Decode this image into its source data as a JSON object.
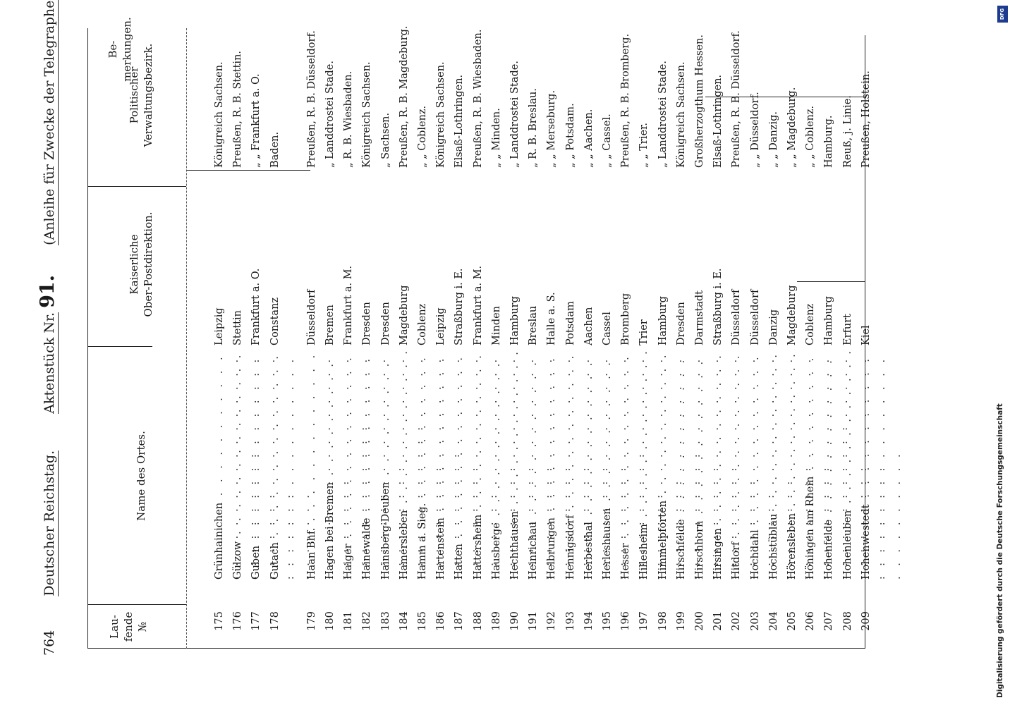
{
  "header": {
    "page_number": "764",
    "publication": "Deutscher Reichstag.",
    "document_label": "Aktenstück Nr.",
    "document_number": "91.",
    "subject": "(Anleihe für Zwecke der Telegraphen-Verwaltung.)"
  },
  "columns": {
    "number": [
      "Lau-",
      "fende",
      "№"
    ],
    "place": [
      "Name des Ortes."
    ],
    "opd": [
      "Kaiserliche",
      "Ober-Postdirektion."
    ],
    "district": [
      "Politischer",
      "Verwaltungsbezirk."
    ],
    "remarks": [
      "Be-",
      "merkungen."
    ]
  },
  "rows": [
    {
      "no": "175",
      "place": "Grünhainichen",
      "opd": "Leipzig",
      "district": "Königreich Sachsen."
    },
    {
      "no": "176",
      "place": "Gülzow",
      "opd": "Stettin",
      "district": "Preußen, R. B. Stettin."
    },
    {
      "no": "177",
      "place": "Guben",
      "opd": "Frankfurt a. O.",
      "district": "„  „  Frankfurt a. O."
    },
    {
      "no": "178",
      "place": "Gutach",
      "opd": "Constanz",
      "district": "Baden."
    },
    {
      "no": "179",
      "place": "Haan Bhf.",
      "opd": "Düsseldorf",
      "district": "Preußen, R. B. Düsseldorf."
    },
    {
      "no": "180",
      "place": "Hagen bei Bremen",
      "opd": "Bremen",
      "district": "„  Landdrostei Stade."
    },
    {
      "no": "181",
      "place": "Haiger",
      "opd": "Frankfurt a. M.",
      "district": "„  R. B. Wiesbaden."
    },
    {
      "no": "182",
      "place": "Hainewalde",
      "opd": "Dresden",
      "district": "Königreich Sachsen."
    },
    {
      "no": "183",
      "place": "Hainsberg-Deuben",
      "opd": "Dresden",
      "district": "„  Sachsen."
    },
    {
      "no": "184",
      "place": "Hamersleben",
      "opd": "Magdeburg",
      "district": "Preußen, R. B. Magdeburg."
    },
    {
      "no": "185",
      "place": "Hamm a. Sieg.",
      "opd": "Coblenz",
      "district": "„  „  Coblenz."
    },
    {
      "no": "186",
      "place": "Hartenstein",
      "opd": "Leipzig",
      "district": "Königreich Sachsen."
    },
    {
      "no": "187",
      "place": "Hatten",
      "opd": "Straßburg i. E.",
      "district": "Elsaß-Lothringen."
    },
    {
      "no": "188",
      "place": "Hattersheim",
      "opd": "Frankfurt a. M.",
      "district": "Preußen, R. B. Wiesbaden."
    },
    {
      "no": "189",
      "place": "Hausberge",
      "opd": "Minden",
      "district": "„  „  Minden."
    },
    {
      "no": "190",
      "place": "Hechthausen",
      "opd": "Hamburg",
      "district": "„  Landdrostei Stade."
    },
    {
      "no": "191",
      "place": "Heinrichau",
      "opd": "Breslau",
      "district": "„  R. B. Breslau."
    },
    {
      "no": "192",
      "place": "Helbrungen",
      "opd": "Halle a. S.",
      "district": "„  „  Merseburg."
    },
    {
      "no": "193",
      "place": "Hennigsdorf",
      "opd": "Potsdam",
      "district": "„  „  Potsdam."
    },
    {
      "no": "194",
      "place": "Herbesthal",
      "opd": "Aachen",
      "district": "„  „  Aachen."
    },
    {
      "no": "195",
      "place": "Herleshausen",
      "opd": "Cassel",
      "district": "„  „  Cassel."
    },
    {
      "no": "196",
      "place": "Hesser",
      "opd": "Bromberg",
      "district": "Preußen, R. B. Bromberg."
    },
    {
      "no": "197",
      "place": "Hillesheim",
      "opd": "Trier",
      "district": "„  „  Trier."
    },
    {
      "no": "198",
      "place": "Himmelpforten",
      "opd": "Hamburg",
      "district": "„  Landdrostei Stade."
    },
    {
      "no": "199",
      "place": "Hirschfelde",
      "opd": "Dresden",
      "district": "Königreich Sachsen."
    },
    {
      "no": "200",
      "place": "Hirschhorn",
      "opd": "Darmstadt",
      "district": "Großherzogthum Hessen."
    },
    {
      "no": "201",
      "place": "Hirsingen",
      "opd": "Straßburg i. E.",
      "district": "Elsaß-Lothringen."
    },
    {
      "no": "202",
      "place": "Hitdorf",
      "opd": "Düsseldorf",
      "district": "Preußen, R. B. Düsseldorf."
    },
    {
      "no": "203",
      "place": "Hochdahl",
      "opd": "Düsseldorf",
      "district": "„  „  Düsseldorf."
    },
    {
      "no": "204",
      "place": "Hochstüblau",
      "opd": "Danzig",
      "district": "„  „  Danzig."
    },
    {
      "no": "205",
      "place": "Hörensleben",
      "opd": "Magdeburg",
      "district": "„  „  Magdeburg."
    },
    {
      "no": "206",
      "place": "Höningen am Rhein",
      "opd": "Coblenz",
      "district": "„  „  Coblenz."
    },
    {
      "no": "207",
      "place": "Hohenfelde",
      "opd": "Hamburg",
      "district": "Hamburg."
    },
    {
      "no": "208",
      "place": "Hohenleuben",
      "opd": "Erfurt",
      "district": "Reuß, j. Linie."
    },
    {
      "no": "209",
      "place": "Hohenwestedt",
      "opd": "Kiel",
      "district": "Preußen, Holstein."
    }
  ],
  "sidenote": "Digitalisierung gefördert durch die Deutsche Forschungsgemeinschaft",
  "badge": "DFG"
}
